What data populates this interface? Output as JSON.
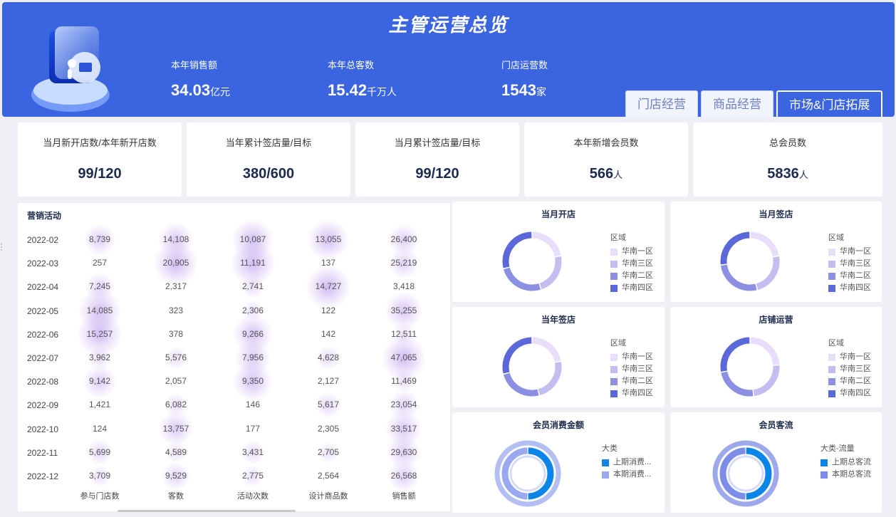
{
  "header": {
    "title": "主管运营总览",
    "kpis": [
      {
        "label": "本年销售额",
        "value": "34.03",
        "unit": "亿元"
      },
      {
        "label": "本年总客数",
        "value": "15.42",
        "unit": "千万人"
      },
      {
        "label": "门店运营数",
        "value": "1543",
        "unit": "家"
      }
    ],
    "tabs": [
      "门店经营",
      "商品经营",
      "市场&门店拓展"
    ],
    "active_tab": "市场&门店拓展"
  },
  "stats": [
    {
      "label": "当月新开店数/本年新开店数",
      "value": "99/120",
      "unit": ""
    },
    {
      "label": "当年累计签店量/目标",
      "value": "380/600",
      "unit": ""
    },
    {
      "label": "当月累计签店量/目标",
      "value": "99/120",
      "unit": ""
    },
    {
      "label": "本年新增会员数",
      "value": "566",
      "unit": "人"
    },
    {
      "label": "总会员数",
      "value": "5836",
      "unit": "人"
    }
  ],
  "marketing": {
    "title": "营销活动",
    "columns": [
      "参与门店数",
      "客数",
      "活动次数",
      "设计商品数",
      "销售额"
    ],
    "rows": [
      {
        "month": "2022-02",
        "values": [
          "8,739",
          "14,108",
          "10,087",
          "13,055",
          "26,400"
        ]
      },
      {
        "month": "2022-03",
        "values": [
          "257",
          "20,905",
          "11,191",
          "137",
          "25,219"
        ]
      },
      {
        "month": "2022-04",
        "values": [
          "7,245",
          "2,317",
          "2,741",
          "14,727",
          "3,418"
        ]
      },
      {
        "month": "2022-05",
        "values": [
          "14,085",
          "323",
          "2,306",
          "122",
          "35,255"
        ]
      },
      {
        "month": "2022-06",
        "values": [
          "15,257",
          "378",
          "9,266",
          "142",
          "12,511"
        ]
      },
      {
        "month": "2022-07",
        "values": [
          "3,962",
          "5,576",
          "7,956",
          "4,628",
          "47,065"
        ]
      },
      {
        "month": "2022-08",
        "values": [
          "9,142",
          "2,057",
          "9,350",
          "2,127",
          "11,469"
        ]
      },
      {
        "month": "2022-09",
        "values": [
          "1,421",
          "6,082",
          "146",
          "5,617",
          "23,054"
        ]
      },
      {
        "month": "2022-10",
        "values": [
          "124",
          "13,757",
          "177",
          "2,305",
          "33,517"
        ]
      },
      {
        "month": "2022-11",
        "values": [
          "5,699",
          "4,589",
          "3,431",
          "2,705",
          "29,630"
        ]
      },
      {
        "month": "2022-12",
        "values": [
          "3,709",
          "9,529",
          "2,775",
          "2,564",
          "26,568"
        ]
      }
    ]
  },
  "donuts": [
    {
      "title": "当月开店",
      "legend_title": "区域",
      "items": [
        {
          "label": "华南一区",
          "color": "#e9defa",
          "value": 0.22
        },
        {
          "label": "华南三区",
          "color": "#c4bdf0",
          "value": 0.23
        },
        {
          "label": "华南二区",
          "color": "#8b90e3",
          "value": 0.26
        },
        {
          "label": "华南四区",
          "color": "#5a68d9",
          "value": 0.29
        }
      ]
    },
    {
      "title": "当月签店",
      "legend_title": "区域",
      "items": [
        {
          "label": "华南一区",
          "color": "#e9defa",
          "value": 0.22
        },
        {
          "label": "华南三区",
          "color": "#c4bdf0",
          "value": 0.24
        },
        {
          "label": "华南二区",
          "color": "#8b90e3",
          "value": 0.27
        },
        {
          "label": "华南四区",
          "color": "#5a68d9",
          "value": 0.27
        }
      ]
    },
    {
      "title": "当年签店",
      "legend_title": "区域",
      "items": [
        {
          "label": "华南一区",
          "color": "#e9defa",
          "value": 0.22
        },
        {
          "label": "华南三区",
          "color": "#c4bdf0",
          "value": 0.24
        },
        {
          "label": "华南二区",
          "color": "#8b90e3",
          "value": 0.25
        },
        {
          "label": "华南四区",
          "color": "#5a68d9",
          "value": 0.29
        }
      ]
    },
    {
      "title": "店铺运营",
      "legend_title": "区域",
      "items": [
        {
          "label": "华南一区",
          "color": "#e9defa",
          "value": 0.24
        },
        {
          "label": "华南三区",
          "color": "#c4bdf0",
          "value": 0.24
        },
        {
          "label": "华南二区",
          "color": "#8b90e3",
          "value": 0.24
        },
        {
          "label": "华南四区",
          "color": "#5a68d9",
          "value": 0.28
        }
      ]
    }
  ],
  "ring_charts": [
    {
      "title": "会员消费金额",
      "legend_title": "大类",
      "items": [
        {
          "label": "上期消费...",
          "color": "#0b86e8",
          "value": 0.5
        },
        {
          "label": "本期消费...",
          "color": "#9aa8ef",
          "value": 0.5
        }
      ]
    },
    {
      "title": "会员客流",
      "legend_title": "大类-流量",
      "items": [
        {
          "label": "上期总客流",
          "color": "#0b86e8",
          "value": 0.5
        },
        {
          "label": "本期总客流",
          "color": "#7d8ce6",
          "value": 0.5
        }
      ]
    }
  ]
}
